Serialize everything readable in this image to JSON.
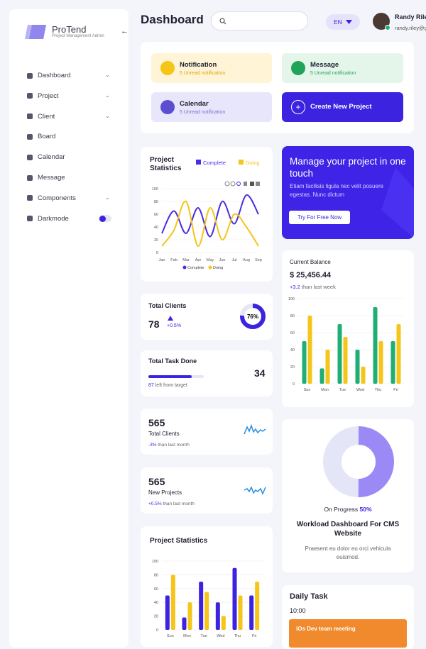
{
  "sidebar": {
    "brand": "ProTend",
    "tagline": "Project Management Admin",
    "menu": [
      "Dashboard",
      "Project",
      "Client",
      "Board",
      "Calendar",
      "Message",
      "Components",
      "Darkmode"
    ]
  },
  "header": {
    "title": "Dashboard",
    "language": "EN",
    "user_name": "Randy Riley",
    "user_email": "randy.riley@g"
  },
  "quick_cards": [
    {
      "title": "Notification",
      "subtitle": "5 Unread notification"
    },
    {
      "title": "Message",
      "subtitle": "5 Unread notification"
    },
    {
      "title": "Calendar",
      "subtitle": "5 Unread notification"
    }
  ],
  "create_button": "Create New Project",
  "banner": {
    "title": "Manage your project in one touch",
    "text": "Etiam facilisis ligula nec velit posuere egestas. Nunc dictum",
    "button": "Try For Free Now"
  },
  "total_clients_card": {
    "title": "Total Clients",
    "value": 78,
    "change": "+0.5%",
    "progress": 76,
    "progress_label": "76%"
  },
  "task_card": {
    "title": "Total Task Done",
    "value": 34,
    "progress": 78,
    "left": 87,
    "left_text": "left from target"
  },
  "stat_cards": [
    {
      "value": 565,
      "label": "Total Clients",
      "change": "-3%",
      "change_text": "than last month"
    },
    {
      "value": 565,
      "label": "New Projects",
      "change": "+0.5%",
      "change_text": "than last month"
    }
  ],
  "daily_task": {
    "title": "Daily Task",
    "time": "10:00",
    "event": "iOs Dev team meeting"
  },
  "chart_data": [
    {
      "type": "line",
      "title": "Project Statistics",
      "categories": [
        "Jan",
        "Feb",
        "Mar",
        "Apr",
        "May",
        "Jun",
        "Jul",
        "Aug",
        "Sep"
      ],
      "series": [
        {
          "name": "Complete",
          "color": "#4a2fe0",
          "values": [
            30,
            65,
            30,
            70,
            25,
            80,
            45,
            90,
            60
          ]
        },
        {
          "name": "Doing",
          "color": "#f5c518",
          "values": [
            10,
            35,
            80,
            10,
            70,
            20,
            60,
            40,
            10
          ]
        }
      ],
      "ylim": [
        0,
        100
      ],
      "yticks": [
        0,
        20,
        40,
        60,
        80,
        100
      ],
      "grid": true
    },
    {
      "type": "bar",
      "title": "Current Balance",
      "subtitle": "$ 25,456.44",
      "change": "+3.2",
      "change_text": "than last week",
      "categories": [
        "Sun",
        "Mon",
        "Tue",
        "Wed",
        "Thu",
        "Fri"
      ],
      "series": [
        {
          "color": "#1fae74",
          "values": [
            50,
            18,
            70,
            40,
            90,
            50
          ]
        },
        {
          "color": "#f5c518",
          "values": [
            80,
            40,
            55,
            20,
            50,
            70
          ]
        }
      ],
      "ylim": [
        0,
        100
      ],
      "yticks": [
        0,
        20,
        40,
        60,
        80,
        100
      ],
      "grid": true
    },
    {
      "type": "donut",
      "label": "On Progress",
      "value": 50,
      "value_label": "50%",
      "color": "#9b8af5",
      "title": "Workload Dashboard For CMS Website",
      "text": "Praesent eu dolor eu orci vehicula euismod."
    },
    {
      "type": "bar",
      "title": "Project Statistics",
      "categories": [
        "Sun",
        "Mon",
        "Tue",
        "Wed",
        "Thu",
        "Fri"
      ],
      "series": [
        {
          "color": "#3b23e0",
          "values": [
            50,
            18,
            70,
            40,
            90,
            50
          ]
        },
        {
          "color": "#f5c518",
          "values": [
            80,
            40,
            55,
            20,
            50,
            70
          ]
        }
      ],
      "ylim": [
        0,
        100
      ],
      "yticks": [
        0,
        20,
        40,
        60,
        80,
        100
      ],
      "grid": true
    }
  ]
}
